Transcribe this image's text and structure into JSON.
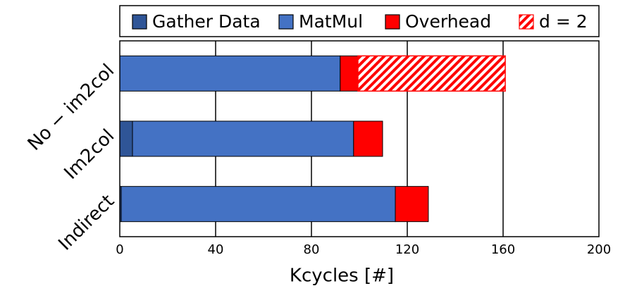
{
  "chart_data": {
    "type": "stacked-barh",
    "xlabel": "Kcycles [#]",
    "categories": [
      "No − im2col",
      "Im2col",
      "Indirect"
    ],
    "series": [
      {
        "name": "Gather Data",
        "color": "#2f5597",
        "values": [
          0,
          5.3,
          0.6
        ]
      },
      {
        "name": "MatMul",
        "color": "#4472c4",
        "values": [
          92,
          92.3,
          114.4
        ]
      },
      {
        "name": "Overhead",
        "color": "#ff0000",
        "values": [
          7.4,
          12.1,
          13.8
        ]
      },
      {
        "name": "d = 2",
        "color": "#ff0000",
        "hatch": true,
        "values": [
          61.5,
          null,
          null
        ]
      }
    ],
    "xlim": [
      0,
      200
    ],
    "xticks": [
      0,
      40,
      80,
      120,
      160,
      200
    ],
    "grid": true
  }
}
